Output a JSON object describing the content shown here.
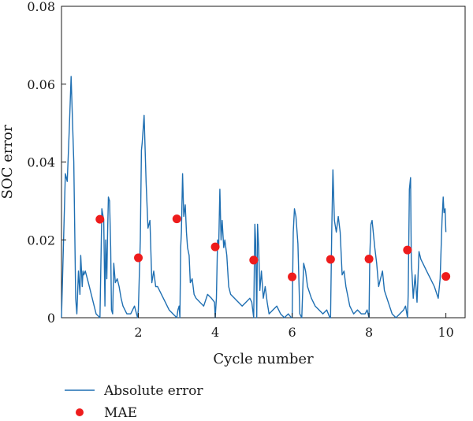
{
  "chart_data": {
    "type": "line",
    "xlabel": "Cycle number",
    "ylabel": "SOC error",
    "xlim": [
      0,
      10.5
    ],
    "ylim": [
      0,
      0.08
    ],
    "x_ticks": [
      2,
      4,
      6,
      8,
      10
    ],
    "x_tick_labels": [
      "2",
      "4",
      "6",
      "8",
      "10"
    ],
    "y_ticks": [
      0,
      0.02,
      0.04,
      0.06,
      0.08
    ],
    "y_tick_labels": [
      "0",
      "0.02",
      "0.04",
      "0.06",
      "0.08"
    ],
    "grid": false,
    "legend_position": "bottom-left (below plot)",
    "series": [
      {
        "name": "Absolute error",
        "kind": "line",
        "color": "#1f6fb2",
        "x": [
          0.0,
          0.1,
          0.15,
          0.2,
          0.25,
          0.32,
          0.37,
          0.4,
          0.44,
          0.48,
          0.5,
          0.52,
          0.54,
          0.56,
          0.58,
          0.62,
          0.7,
          0.8,
          0.9,
          1.0,
          1.05,
          1.1,
          1.13,
          1.15,
          1.18,
          1.2,
          1.22,
          1.25,
          1.28,
          1.3,
          1.33,
          1.36,
          1.4,
          1.45,
          1.5,
          1.55,
          1.6,
          1.7,
          1.8,
          1.9,
          1.98,
          2.0,
          2.05,
          2.08,
          2.1,
          2.15,
          2.2,
          2.25,
          2.3,
          2.35,
          2.4,
          2.45,
          2.5,
          2.6,
          2.7,
          2.8,
          2.9,
          3.0,
          3.03,
          3.06,
          3.08,
          3.1,
          3.12,
          3.15,
          3.18,
          3.22,
          3.25,
          3.28,
          3.32,
          3.35,
          3.4,
          3.45,
          3.5,
          3.6,
          3.7,
          3.8,
          3.9,
          3.98,
          4.0,
          4.03,
          4.06,
          4.09,
          4.12,
          4.15,
          4.18,
          4.22,
          4.25,
          4.3,
          4.35,
          4.4,
          4.5,
          4.6,
          4.7,
          4.8,
          4.9,
          4.95,
          5.0,
          5.03,
          5.05,
          5.08,
          5.1,
          5.13,
          5.16,
          5.2,
          5.25,
          5.3,
          5.35,
          5.4,
          5.5,
          5.6,
          5.7,
          5.8,
          5.9,
          5.98,
          6.0,
          6.03,
          6.06,
          6.1,
          6.15,
          6.2,
          6.25,
          6.3,
          6.35,
          6.4,
          6.5,
          6.6,
          6.7,
          6.8,
          6.9,
          6.98,
          7.0,
          7.03,
          7.06,
          7.1,
          7.15,
          7.2,
          7.25,
          7.3,
          7.35,
          7.4,
          7.5,
          7.6,
          7.7,
          7.8,
          7.9,
          7.95,
          8.0,
          8.02,
          8.05,
          8.08,
          8.1,
          8.15,
          8.2,
          8.25,
          8.3,
          8.35,
          8.4,
          8.5,
          8.6,
          8.7,
          8.8,
          8.9,
          8.95,
          9.0,
          9.02,
          9.05,
          9.08,
          9.1,
          9.15,
          9.2,
          9.25,
          9.3,
          9.35,
          9.4,
          9.5,
          9.6,
          9.7,
          9.8,
          9.85,
          9.9,
          9.93,
          9.95,
          9.98,
          10.0
        ],
        "y": [
          0.0,
          0.037,
          0.035,
          0.048,
          0.062,
          0.04,
          0.005,
          0.001,
          0.012,
          0.006,
          0.016,
          0.012,
          0.008,
          0.012,
          0.011,
          0.012,
          0.009,
          0.005,
          0.001,
          0.0,
          0.028,
          0.025,
          0.003,
          0.02,
          0.01,
          0.022,
          0.031,
          0.03,
          0.018,
          0.002,
          0.001,
          0.014,
          0.009,
          0.01,
          0.008,
          0.005,
          0.003,
          0.001,
          0.001,
          0.003,
          0.0,
          0.002,
          0.02,
          0.043,
          0.045,
          0.052,
          0.035,
          0.023,
          0.025,
          0.009,
          0.012,
          0.008,
          0.008,
          0.006,
          0.004,
          0.002,
          0.001,
          0.0,
          0.002,
          0.003,
          0.0,
          0.018,
          0.022,
          0.037,
          0.026,
          0.029,
          0.022,
          0.018,
          0.016,
          0.009,
          0.01,
          0.006,
          0.005,
          0.004,
          0.003,
          0.006,
          0.005,
          0.004,
          0.0,
          0.005,
          0.02,
          0.018,
          0.033,
          0.02,
          0.025,
          0.018,
          0.02,
          0.016,
          0.008,
          0.006,
          0.005,
          0.004,
          0.003,
          0.004,
          0.005,
          0.004,
          0.0,
          0.024,
          0.02,
          0.0,
          0.024,
          0.018,
          0.007,
          0.012,
          0.005,
          0.008,
          0.004,
          0.001,
          0.002,
          0.003,
          0.001,
          0.0,
          0.001,
          0.0,
          0.0,
          0.022,
          0.028,
          0.026,
          0.019,
          0.001,
          0.0,
          0.014,
          0.012,
          0.008,
          0.005,
          0.003,
          0.002,
          0.001,
          0.002,
          0.0,
          0.0,
          0.022,
          0.038,
          0.025,
          0.022,
          0.026,
          0.022,
          0.011,
          0.012,
          0.008,
          0.003,
          0.001,
          0.002,
          0.001,
          0.001,
          0.002,
          0.0,
          0.016,
          0.024,
          0.025,
          0.023,
          0.018,
          0.014,
          0.008,
          0.01,
          0.012,
          0.007,
          0.004,
          0.001,
          0.0,
          0.001,
          0.002,
          0.003,
          0.0,
          0.006,
          0.033,
          0.036,
          0.015,
          0.005,
          0.011,
          0.004,
          0.017,
          0.015,
          0.014,
          0.012,
          0.01,
          0.008,
          0.005,
          0.01,
          0.025,
          0.031,
          0.027,
          0.028,
          0.022
        ]
      },
      {
        "name": "MAE",
        "kind": "scatter",
        "color": "#ee1c1c",
        "x": [
          1,
          2,
          3,
          4,
          5,
          6,
          7,
          8,
          9,
          10
        ],
        "y": [
          0.0253,
          0.0154,
          0.0254,
          0.0182,
          0.0148,
          0.0105,
          0.015,
          0.0151,
          0.0174,
          0.0106
        ]
      }
    ]
  }
}
